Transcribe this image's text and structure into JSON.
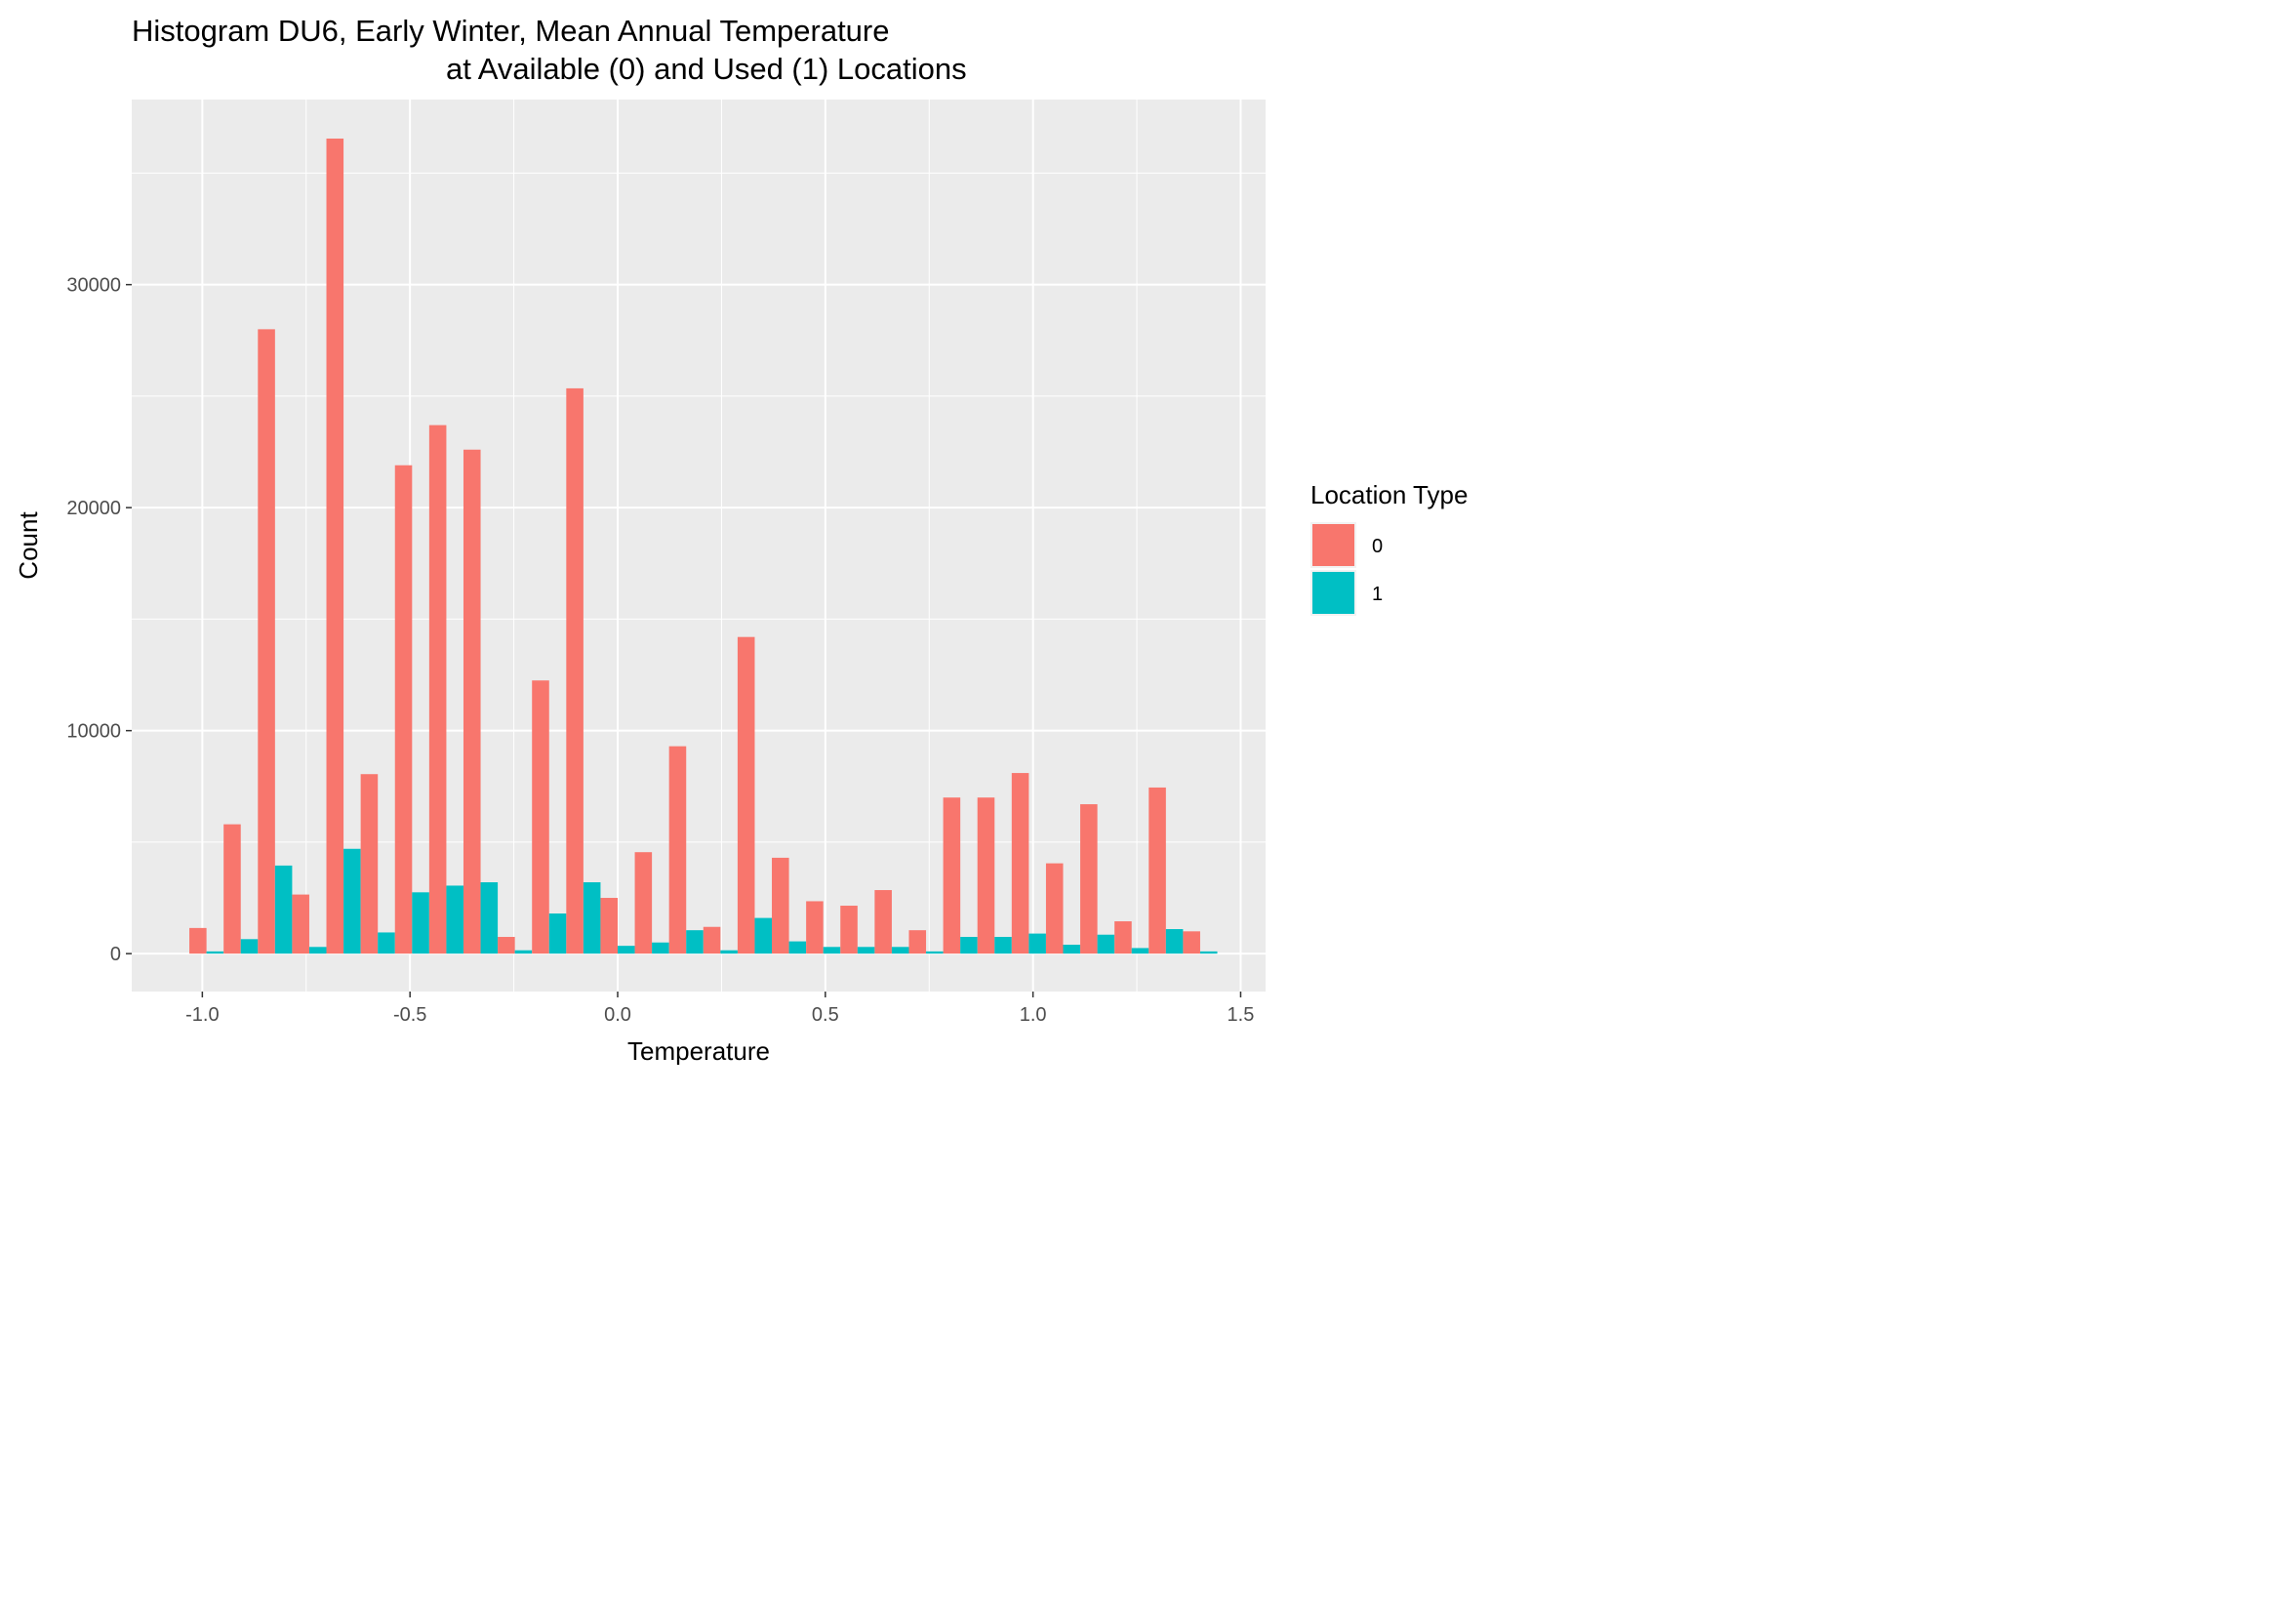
{
  "chart_data": {
    "type": "bar",
    "title_lines": [
      "Histogram DU6, Early Winter, Mean Annual Temperature",
      "at Available (0) and Used (1) Locations"
    ],
    "xlabel": "Temperature",
    "ylabel": "Count",
    "xlim": [
      -1.17,
      1.56
    ],
    "ylim": [
      -1700,
      38300
    ],
    "x_ticks": [
      -1.0,
      -0.5,
      0.0,
      0.5,
      1.0,
      1.5
    ],
    "x_tick_labels": [
      "-1.0",
      "-0.5",
      "0.0",
      "0.5",
      "1.0",
      "1.5"
    ],
    "y_ticks": [
      0,
      10000,
      20000,
      30000
    ],
    "y_tick_labels": [
      "0",
      "10000",
      "20000",
      "30000"
    ],
    "grid": true,
    "legend": {
      "title": "Location Type",
      "position": "right"
    },
    "bin_width": 0.0825,
    "bin_centers": [
      -0.99,
      -0.9075,
      -0.825,
      -0.7425,
      -0.66,
      -0.5775,
      -0.495,
      -0.4125,
      -0.33,
      -0.2475,
      -0.165,
      -0.0825,
      0.0,
      0.0825,
      0.165,
      0.2475,
      0.33,
      0.4125,
      0.495,
      0.5775,
      0.66,
      0.7425,
      0.825,
      0.9075,
      0.99,
      1.0725,
      1.155,
      1.2375,
      1.32,
      1.4025
    ],
    "series": [
      {
        "name": "0",
        "color": "#F8766D",
        "values": [
          1150,
          5800,
          28000,
          2650,
          36550,
          8050,
          21900,
          23700,
          22600,
          750,
          12250,
          25350,
          2500,
          4550,
          9300,
          1200,
          14200,
          4300,
          2350,
          2150,
          2850,
          1050,
          7000,
          7000,
          8100,
          4050,
          6700,
          1450,
          7450,
          1000
        ]
      },
      {
        "name": "1",
        "color": "#00BFC4",
        "values": [
          100,
          650,
          3950,
          300,
          4700,
          950,
          2750,
          3050,
          3200,
          150,
          1800,
          3200,
          350,
          500,
          1050,
          150,
          1600,
          550,
          300,
          300,
          300,
          100,
          750,
          750,
          900,
          400,
          850,
          250,
          1100,
          100
        ]
      }
    ]
  }
}
